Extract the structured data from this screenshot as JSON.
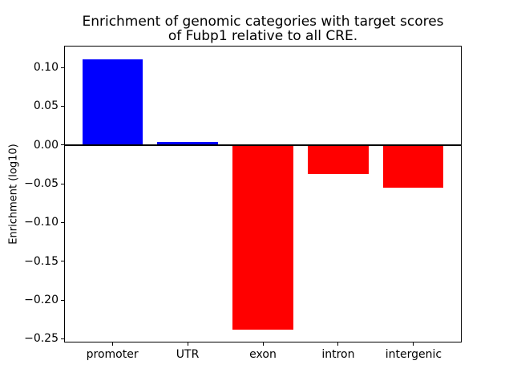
{
  "figure": {
    "title_line1": "Enrichment of genomic categories with target scores",
    "title_line2": "of Fubp1 relative to all CRE.",
    "ylabel": "Enrichment (log10)"
  },
  "chart_data": {
    "type": "bar",
    "title": "Enrichment of genomic categories with target scores\nof Fubp1 relative to all CRE.",
    "xlabel": "",
    "ylabel": "Enrichment (log10)",
    "categories": [
      "promoter",
      "UTR",
      "exon",
      "intron",
      "intergenic"
    ],
    "values": [
      0.11,
      0.004,
      -0.238,
      -0.038,
      -0.055
    ],
    "bar_colors": [
      "#0000ff",
      "#0000ff",
      "#ff0000",
      "#ff0000",
      "#ff0000"
    ],
    "positive_color": "#0000ff",
    "negative_color": "#ff0000",
    "bar_width": 0.8,
    "ylim": [
      -0.2547,
      0.128
    ],
    "yticks": [
      0.1,
      0.05,
      0.0,
      -0.05,
      -0.1,
      -0.15,
      -0.2,
      -0.25
    ],
    "ytick_labels": [
      "0.10",
      "0.05",
      "0.00",
      "−0.05",
      "−0.10",
      "−0.15",
      "−0.20",
      "−0.25"
    ],
    "zero_line": true,
    "zero_line_color": "#000000",
    "grid": false,
    "legend": "none",
    "axes_background": "#ffffff"
  }
}
